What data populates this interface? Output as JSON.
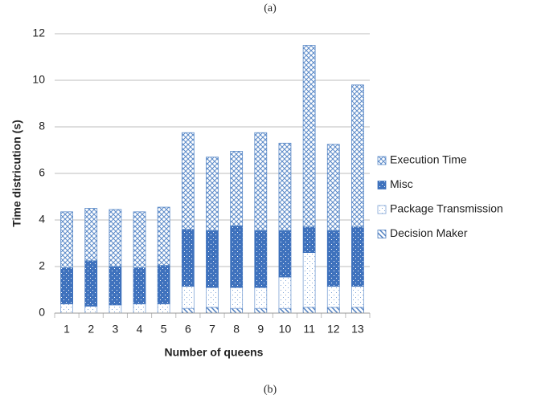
{
  "chart_data": {
    "type": "stacked_bar",
    "annotations": [
      "(a)",
      "(b)"
    ],
    "x_label": "Number of queens",
    "y_label": "Time districution (s)",
    "categories": [
      "1",
      "2",
      "3",
      "4",
      "5",
      "6",
      "7",
      "8",
      "9",
      "10",
      "11",
      "12",
      "13"
    ],
    "series": [
      {
        "name": "Decision Maker",
        "color": "#4f7fc0",
        "pattern": "diagonal",
        "values": [
          0,
          0,
          0,
          0,
          0,
          0.2,
          0.25,
          0.2,
          0.2,
          0.2,
          0.25,
          0.25,
          0.25
        ]
      },
      {
        "name": "Package Transmission",
        "color": "#7fa4d6",
        "pattern": "sparse-dots",
        "values": [
          0.4,
          0.3,
          0.35,
          0.4,
          0.4,
          0.95,
          0.85,
          0.9,
          0.9,
          1.35,
          2.35,
          0.9,
          0.9
        ]
      },
      {
        "name": "Misc",
        "color": "#3f72bd",
        "pattern": "dense",
        "values": [
          1.55,
          1.95,
          1.65,
          1.55,
          1.65,
          2.45,
          2.45,
          2.65,
          2.45,
          2.0,
          1.1,
          2.4,
          2.55
        ]
      },
      {
        "name": "Execution Time",
        "color": "#5b8ac8",
        "pattern": "crosshatch",
        "values": [
          2.4,
          2.25,
          2.45,
          2.4,
          2.5,
          4.15,
          3.15,
          3.2,
          4.2,
          3.75,
          7.8,
          3.7,
          6.1
        ]
      }
    ],
    "ylim": [
      0,
      12
    ],
    "yticks": [
      0,
      2,
      4,
      6,
      8,
      10,
      12
    ],
    "grid": true,
    "legend": "right"
  }
}
